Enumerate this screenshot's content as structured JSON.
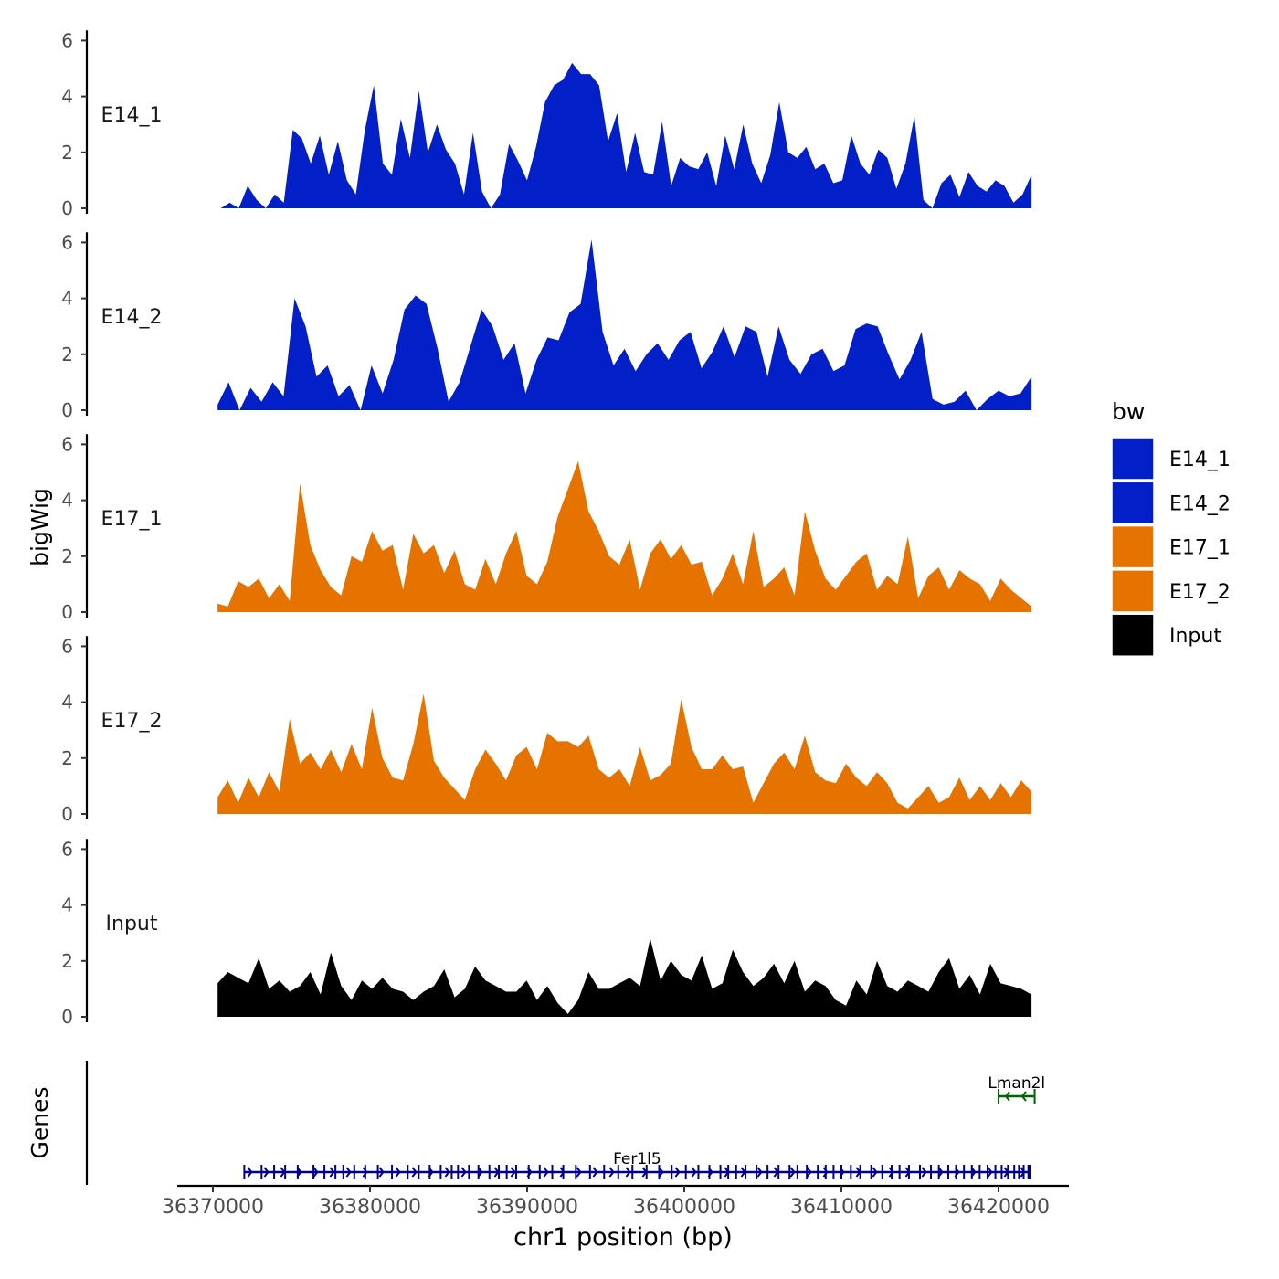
{
  "chart_data": {
    "type": "area",
    "ylabel": "bigWig",
    "xlabel": "chr1 position (bp)",
    "xlim": [
      36368000,
      36424000
    ],
    "x_ticks": [
      36370000,
      36380000,
      36390000,
      36400000,
      36410000,
      36420000
    ],
    "x_tick_labels": [
      "36370000",
      "36380000",
      "36390000",
      "36400000",
      "36410000",
      "36420000"
    ],
    "ylim": [
      0,
      6.3
    ],
    "y_ticks": [
      0,
      2,
      4,
      6
    ],
    "y_tick_labels": [
      "0",
      "2",
      "4",
      "6"
    ],
    "legend": {
      "title": "bw",
      "position": "right",
      "entries": [
        {
          "label": "E14_1",
          "color": "#0320C8"
        },
        {
          "label": "E14_2",
          "color": "#0320C8"
        },
        {
          "label": "E17_1",
          "color": "#E67300"
        },
        {
          "label": "E17_2",
          "color": "#E67300"
        },
        {
          "label": "Input",
          "color": "#000000"
        }
      ]
    },
    "x_start": 36370300,
    "x_end": 36422100,
    "series": [
      {
        "name": "E14_1",
        "color": "#0320C8",
        "start": 36370500,
        "values": [
          0,
          0.2,
          0,
          0.8,
          0.3,
          0,
          0.5,
          0.2,
          2.8,
          2.5,
          1.6,
          2.6,
          1.2,
          2.4,
          1.0,
          0.5,
          2.8,
          4.4,
          1.6,
          1.2,
          3.2,
          1.8,
          4.2,
          2.0,
          3.0,
          2.1,
          1.6,
          0.5,
          2.7,
          0.6,
          0.0,
          0.5,
          2.3,
          1.7,
          1.0,
          2.2,
          3.8,
          4.4,
          4.6,
          5.2,
          4.8,
          4.8,
          4.4,
          2.4,
          3.4,
          1.3,
          2.7,
          1.3,
          1.2,
          3.1,
          0.8,
          1.8,
          1.5,
          1.4,
          2.0,
          0.8,
          2.6,
          1.4,
          3.0,
          1.6,
          0.9,
          1.9,
          3.8,
          2.0,
          1.8,
          2.2,
          1.4,
          1.6,
          0.9,
          1.0,
          2.6,
          1.6,
          1.2,
          2.1,
          1.8,
          0.7,
          1.6,
          3.3,
          0.3,
          0.0,
          0.9,
          1.2,
          0.4,
          1.3,
          0.8,
          0.6,
          1.0,
          0.8,
          0.2,
          0.5,
          1.2
        ]
      },
      {
        "name": "E14_2",
        "color": "#0320C8",
        "start": 36370300,
        "values": [
          0.2,
          1.0,
          0,
          0.8,
          0.3,
          1.0,
          0.5,
          4.0,
          3.0,
          1.2,
          1.6,
          0.5,
          0.9,
          0,
          1.6,
          0.6,
          1.8,
          3.6,
          4.1,
          3.8,
          2.2,
          0.3,
          1.0,
          2.3,
          3.6,
          3.0,
          1.8,
          2.4,
          0.6,
          1.8,
          2.6,
          2.5,
          3.5,
          3.8,
          6.1,
          2.8,
          1.6,
          2.2,
          1.4,
          2.0,
          2.4,
          1.8,
          2.5,
          2.8,
          1.5,
          2.1,
          3.0,
          1.9,
          3.0,
          2.8,
          1.2,
          3.0,
          1.8,
          1.3,
          2.0,
          2.2,
          1.4,
          1.6,
          2.9,
          3.1,
          3.0,
          2.0,
          1.1,
          1.8,
          2.8,
          0.4,
          0.2,
          0.3,
          0.7,
          0.0,
          0.4,
          0.7,
          0.5,
          0.6,
          1.2
        ]
      },
      {
        "name": "E17_1",
        "color": "#E67300",
        "start": 36370300,
        "values": [
          0.3,
          0.2,
          1.1,
          0.9,
          1.2,
          0.5,
          1.0,
          0.4,
          4.6,
          2.4,
          1.5,
          0.9,
          0.6,
          2.0,
          1.8,
          2.9,
          2.2,
          2.4,
          0.8,
          2.8,
          2.1,
          2.4,
          1.4,
          2.2,
          1.0,
          0.8,
          1.9,
          1.0,
          2.1,
          2.9,
          1.3,
          1.0,
          1.8,
          3.4,
          4.4,
          5.4,
          3.6,
          2.9,
          2.0,
          1.7,
          2.6,
          0.8,
          2.1,
          2.6,
          1.9,
          2.4,
          1.7,
          1.8,
          0.6,
          1.2,
          2.1,
          1.0,
          2.9,
          0.9,
          1.2,
          1.6,
          0.6,
          3.6,
          2.2,
          1.2,
          0.8,
          1.3,
          1.8,
          2.1,
          0.8,
          1.3,
          1.0,
          2.7,
          0.5,
          1.3,
          1.6,
          0.8,
          1.5,
          1.2,
          1.0,
          0.4,
          1.2,
          0.8,
          0.5,
          0.2
        ]
      },
      {
        "name": "E17_2",
        "color": "#E67300",
        "start": 36370300,
        "values": [
          0.6,
          1.2,
          0.4,
          1.3,
          0.6,
          1.5,
          0.8,
          3.4,
          1.8,
          2.2,
          1.6,
          2.3,
          1.5,
          2.5,
          1.6,
          3.8,
          2.0,
          1.3,
          1.2,
          2.5,
          4.3,
          1.9,
          1.3,
          0.9,
          0.5,
          1.6,
          2.3,
          1.8,
          1.2,
          2.1,
          2.4,
          1.6,
          2.9,
          2.6,
          2.6,
          2.4,
          2.8,
          1.6,
          1.3,
          1.6,
          1.0,
          2.4,
          1.2,
          1.4,
          1.8,
          4.1,
          2.4,
          1.6,
          1.6,
          2.1,
          1.6,
          1.7,
          0.4,
          1.1,
          1.8,
          2.2,
          1.6,
          2.8,
          1.5,
          1.2,
          1.1,
          1.8,
          1.3,
          1.0,
          1.5,
          1.1,
          0.4,
          0.2,
          0.6,
          1.0,
          0.4,
          0.6,
          1.3,
          0.5,
          1.0,
          0.5,
          1.1,
          0.6,
          1.2,
          0.8
        ]
      },
      {
        "name": "Input",
        "color": "#000000",
        "start": 36370300,
        "values": [
          1.2,
          1.6,
          1.4,
          1.2,
          2.1,
          1.0,
          1.3,
          0.9,
          1.1,
          1.6,
          0.8,
          2.3,
          1.1,
          0.6,
          1.3,
          1.0,
          1.4,
          1.0,
          0.9,
          0.6,
          0.9,
          1.1,
          1.7,
          0.7,
          1.0,
          1.8,
          1.3,
          1.1,
          0.9,
          0.9,
          1.3,
          0.6,
          1.1,
          0.5,
          0.1,
          0.6,
          1.6,
          1.0,
          1.0,
          1.2,
          1.4,
          1.1,
          2.8,
          1.3,
          2.0,
          1.5,
          1.3,
          2.2,
          1.0,
          1.2,
          2.4,
          1.6,
          1.1,
          1.4,
          1.9,
          1.2,
          2.0,
          0.9,
          1.3,
          1.1,
          0.6,
          0.4,
          1.3,
          0.8,
          2.0,
          1.1,
          0.9,
          1.3,
          1.1,
          0.9,
          1.6,
          2.1,
          1.0,
          1.5,
          0.8,
          1.9,
          1.2,
          1.1,
          1.0,
          0.8
        ]
      }
    ],
    "genes": {
      "label": "Genes",
      "items": [
        {
          "name": "Fer1l5",
          "start": 36372000,
          "end": 36422000,
          "strand": "+",
          "color": "#00008B",
          "exons": [
            36372000,
            36373100,
            36373900,
            36374600,
            36375400,
            36376400,
            36377100,
            36377800,
            36378300,
            36379000,
            36379700,
            36380500,
            36381400,
            36382400,
            36383100,
            36383800,
            36384500,
            36385200,
            36385600,
            36386300,
            36386900,
            36387600,
            36388200,
            36388700,
            36389300,
            36390100,
            36390800,
            36391600,
            36392300,
            36393100,
            36394000,
            36394900,
            36395800,
            36396700,
            36397600,
            36398400,
            36399200,
            36400100,
            36400900,
            36401600,
            36402300,
            36402800,
            36403300,
            36403900,
            36404600,
            36405300,
            36406000,
            36406700,
            36407200,
            36407800,
            36408500,
            36409000,
            36409500,
            36410000,
            36410600,
            36411200,
            36411900,
            36412600,
            36413200,
            36413700,
            36414300,
            36415000,
            36415700,
            36416200,
            36416800,
            36417300,
            36417800,
            36418300,
            36418800,
            36419300,
            36419800,
            36420200,
            36420600,
            36421000,
            36421300,
            36421600,
            36421900,
            36422000
          ]
        },
        {
          "name": "Lman2l",
          "start": 36420000,
          "end": 36422300,
          "strand": "-",
          "color": "#006400",
          "exons": [
            36420000,
            36422300
          ]
        }
      ]
    }
  }
}
